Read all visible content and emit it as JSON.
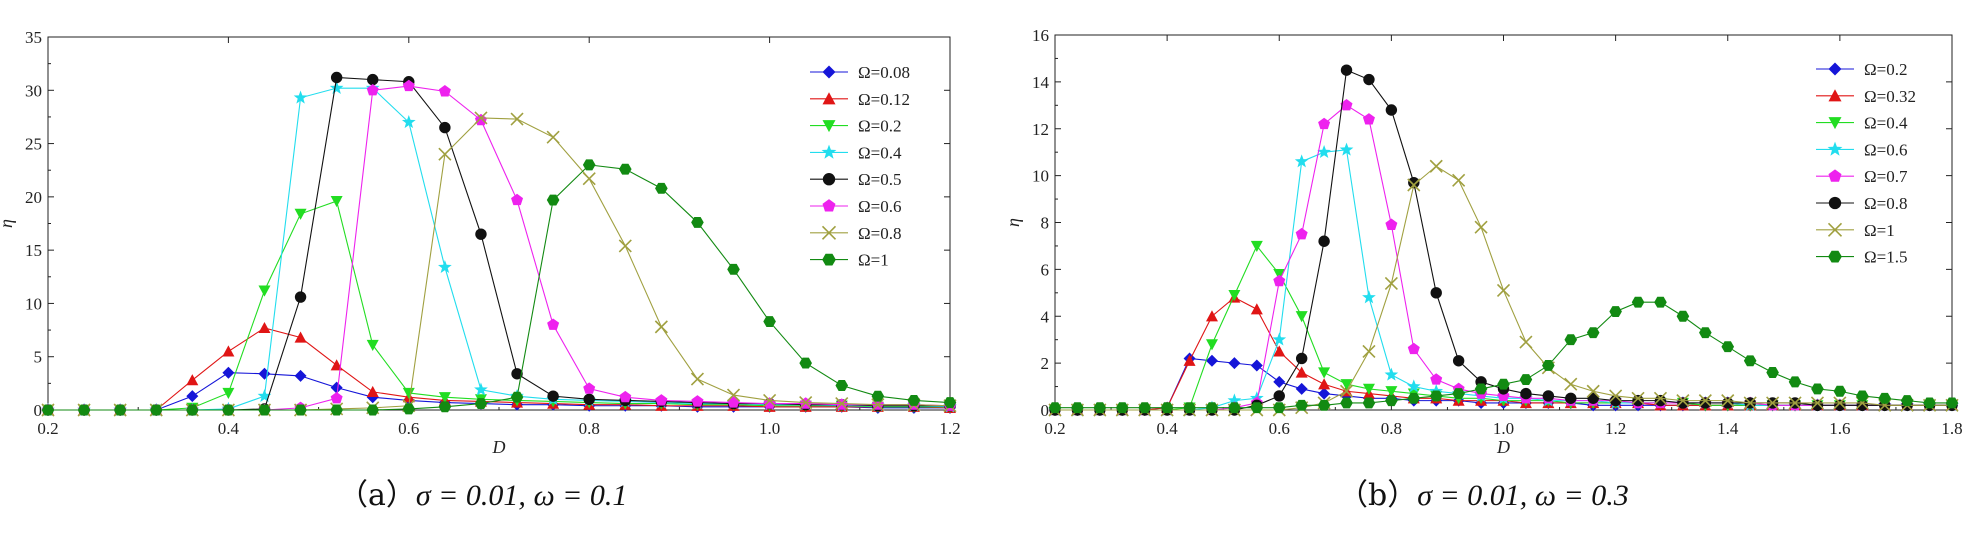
{
  "chart_data": [
    {
      "type": "line",
      "xlabel": "D",
      "ylabel": "η",
      "xlim": [
        0.2,
        1.2
      ],
      "ylim": [
        0,
        35
      ],
      "xticks": [
        0.2,
        0.4,
        0.6,
        0.8,
        1.0,
        1.2
      ],
      "xtick_labels": [
        "0.2",
        "0.4",
        "0.6",
        "0.8",
        "1.0",
        "1.2"
      ],
      "yticks": [
        0,
        5,
        10,
        15,
        20,
        25,
        30,
        35
      ],
      "ytick_labels": [
        "0",
        "5",
        "10",
        "15",
        "20",
        "25",
        "30",
        "35"
      ],
      "grid": false,
      "legend_position": "top-right",
      "x": [
        0.2,
        0.24,
        0.28,
        0.32,
        0.36,
        0.4,
        0.44,
        0.48,
        0.52,
        0.56,
        0.6,
        0.64,
        0.68,
        0.72,
        0.76,
        0.8,
        0.84,
        0.88,
        0.92,
        0.96,
        1.0,
        1.04,
        1.08,
        1.12,
        1.16,
        1.2
      ],
      "series": [
        {
          "name": "Ω=0.08",
          "color": "#1515d8",
          "marker": "diamond",
          "values": [
            0,
            0,
            0,
            0,
            1.3,
            3.5,
            3.4,
            3.2,
            2.1,
            1.2,
            0.9,
            0.7,
            0.6,
            0.5,
            0.5,
            0.4,
            0.4,
            0.4,
            0.3,
            0.3,
            0.3,
            0.3,
            0.3,
            0.2,
            0.2,
            0.2
          ]
        },
        {
          "name": "Ω=0.12",
          "color": "#e01515",
          "marker": "triangle-up",
          "values": [
            0,
            0,
            0,
            0,
            2.8,
            5.5,
            7.7,
            6.8,
            4.2,
            1.7,
            1.2,
            0.9,
            0.8,
            0.7,
            0.6,
            0.5,
            0.5,
            0.4,
            0.4,
            0.4,
            0.3,
            0.3,
            0.3,
            0.3,
            0.3,
            0.2
          ]
        },
        {
          "name": "Ω=0.2",
          "color": "#22dd22",
          "marker": "triangle-down",
          "values": [
            0,
            0,
            0,
            0,
            0.2,
            1.6,
            11.2,
            18.4,
            19.6,
            6.1,
            1.6,
            1.2,
            1.0,
            0.9,
            0.8,
            0.7,
            0.6,
            0.6,
            0.5,
            0.5,
            0.4,
            0.4,
            0.4,
            0.3,
            0.3,
            0.3
          ]
        },
        {
          "name": "Ω=0.4",
          "color": "#22ddee",
          "marker": "star",
          "values": [
            0,
            0,
            0,
            0,
            0,
            0.1,
            1.3,
            29.3,
            30.2,
            30.2,
            27.0,
            13.4,
            1.9,
            1.3,
            1.0,
            0.9,
            0.8,
            0.7,
            0.6,
            0.6,
            0.5,
            0.5,
            0.4,
            0.4,
            0.4,
            0.3
          ]
        },
        {
          "name": "Ω=0.5",
          "color": "#111111",
          "marker": "circle",
          "values": [
            0,
            0,
            0,
            0,
            0,
            0,
            0.1,
            10.6,
            31.2,
            31.0,
            30.8,
            26.5,
            16.5,
            3.4,
            1.3,
            1.0,
            0.9,
            0.8,
            0.7,
            0.6,
            0.6,
            0.5,
            0.5,
            0.4,
            0.4,
            0.4
          ]
        },
        {
          "name": "Ω=0.6",
          "color": "#ee22ee",
          "marker": "pentagon",
          "values": [
            0,
            0,
            0,
            0,
            0,
            0,
            0,
            0.2,
            1.1,
            30.0,
            30.4,
            29.9,
            27.2,
            19.7,
            8.0,
            2.0,
            1.2,
            0.9,
            0.8,
            0.7,
            0.6,
            0.6,
            0.5,
            0.5,
            0.5,
            0.4
          ]
        },
        {
          "name": "Ω=0.8",
          "color": "#a0a040",
          "marker": "x",
          "values": [
            0,
            0,
            0,
            0,
            0,
            0,
            0,
            0,
            0.1,
            0.2,
            0.4,
            24.0,
            27.4,
            27.3,
            25.6,
            21.7,
            15.4,
            7.8,
            2.9,
            1.4,
            0.9,
            0.7,
            0.6,
            0.5,
            0.5,
            0.4
          ]
        },
        {
          "name": "Ω=1",
          "color": "#128a12",
          "marker": "hexagon",
          "values": [
            0,
            0,
            0,
            0,
            0,
            0,
            0,
            0,
            0,
            0,
            0.1,
            0.3,
            0.6,
            1.2,
            19.7,
            23.0,
            22.6,
            20.8,
            17.6,
            13.2,
            8.3,
            4.4,
            2.3,
            1.3,
            0.9,
            0.7
          ]
        }
      ]
    },
    {
      "type": "line",
      "xlabel": "D",
      "ylabel": "η",
      "xlim": [
        0.2,
        1.8
      ],
      "ylim": [
        0,
        16
      ],
      "xticks": [
        0.2,
        0.4,
        0.6,
        0.8,
        1.0,
        1.2,
        1.4,
        1.6,
        1.8
      ],
      "xtick_labels": [
        "0.2",
        "0.4",
        "0.6",
        "0.8",
        "1.0",
        "1.2",
        "1.4",
        "1.6",
        "1.8"
      ],
      "yticks": [
        0,
        2,
        4,
        6,
        8,
        10,
        12,
        14,
        16
      ],
      "ytick_labels": [
        "0",
        "2",
        "4",
        "6",
        "8",
        "10",
        "12",
        "14",
        "16"
      ],
      "grid": false,
      "legend_position": "top-right",
      "x": [
        0.2,
        0.24,
        0.28,
        0.32,
        0.36,
        0.4,
        0.44,
        0.48,
        0.52,
        0.56,
        0.6,
        0.64,
        0.68,
        0.72,
        0.76,
        0.8,
        0.84,
        0.88,
        0.92,
        0.96,
        1.0,
        1.04,
        1.08,
        1.12,
        1.16,
        1.2,
        1.24,
        1.28,
        1.32,
        1.36,
        1.4,
        1.44,
        1.48,
        1.52,
        1.56,
        1.6,
        1.64,
        1.68,
        1.72,
        1.76,
        1.8
      ],
      "series": [
        {
          "name": "Ω=0.2",
          "color": "#1515d8",
          "marker": "diamond",
          "values": [
            0,
            0,
            0,
            0,
            0,
            0.1,
            2.2,
            2.1,
            2.0,
            1.9,
            1.2,
            0.9,
            0.7,
            0.6,
            0.5,
            0.5,
            0.4,
            0.4,
            0.4,
            0.3,
            0.3,
            0.3,
            0.3,
            0.3,
            0.2,
            0.2,
            0.2,
            0.2,
            0.2,
            0.2,
            0.2,
            0.2,
            0.2,
            0.2,
            0.2,
            0.2,
            0.2,
            0.2,
            0.2,
            0.2,
            0.2
          ]
        },
        {
          "name": "Ω=0.32",
          "color": "#e01515",
          "marker": "triangle-up",
          "values": [
            0,
            0,
            0,
            0,
            0,
            0.1,
            2.1,
            4.0,
            4.8,
            4.3,
            2.5,
            1.6,
            1.1,
            0.8,
            0.7,
            0.6,
            0.5,
            0.5,
            0.4,
            0.4,
            0.4,
            0.3,
            0.3,
            0.3,
            0.3,
            0.3,
            0.3,
            0.2,
            0.2,
            0.2,
            0.2,
            0.2,
            0.2,
            0.2,
            0.2,
            0.2,
            0.2,
            0.2,
            0.2,
            0.2,
            0.2
          ]
        },
        {
          "name": "Ω=0.4",
          "color": "#22dd22",
          "marker": "triangle-down",
          "values": [
            0,
            0,
            0,
            0,
            0,
            0,
            0.1,
            2.8,
            4.9,
            7.0,
            5.8,
            4.0,
            1.6,
            1.1,
            0.9,
            0.8,
            0.7,
            0.6,
            0.5,
            0.5,
            0.4,
            0.4,
            0.4,
            0.3,
            0.3,
            0.3,
            0.3,
            0.3,
            0.3,
            0.2,
            0.2,
            0.2,
            0.2,
            0.2,
            0.2,
            0.2,
            0.2,
            0.2,
            0.2,
            0.2,
            0.2
          ]
        },
        {
          "name": "Ω=0.6",
          "color": "#22ddee",
          "marker": "star",
          "values": [
            0,
            0,
            0,
            0,
            0,
            0,
            0,
            0.1,
            0.4,
            0.5,
            3.0,
            10.6,
            11.0,
            11.1,
            4.8,
            1.5,
            1.0,
            0.8,
            0.7,
            0.6,
            0.5,
            0.5,
            0.4,
            0.4,
            0.4,
            0.3,
            0.3,
            0.3,
            0.3,
            0.3,
            0.3,
            0.2,
            0.2,
            0.2,
            0.2,
            0.2,
            0.2,
            0.2,
            0.2,
            0.2,
            0.2
          ]
        },
        {
          "name": "Ω=0.7",
          "color": "#ee22ee",
          "marker": "pentagon",
          "values": [
            0,
            0,
            0,
            0,
            0,
            0,
            0,
            0,
            0.1,
            0.3,
            5.5,
            7.5,
            12.2,
            13.0,
            12.4,
            7.9,
            2.6,
            1.3,
            0.9,
            0.7,
            0.6,
            0.5,
            0.5,
            0.4,
            0.4,
            0.4,
            0.3,
            0.3,
            0.3,
            0.3,
            0.3,
            0.3,
            0.2,
            0.2,
            0.2,
            0.2,
            0.2,
            0.2,
            0.2,
            0.2,
            0.2
          ]
        },
        {
          "name": "Ω=0.8",
          "color": "#111111",
          "marker": "circle",
          "values": [
            0,
            0,
            0,
            0,
            0,
            0,
            0,
            0,
            0,
            0.2,
            0.6,
            2.2,
            7.2,
            14.5,
            14.1,
            12.8,
            9.7,
            5.0,
            2.1,
            1.2,
            0.9,
            0.7,
            0.6,
            0.5,
            0.5,
            0.4,
            0.4,
            0.4,
            0.3,
            0.3,
            0.3,
            0.3,
            0.3,
            0.3,
            0.2,
            0.2,
            0.2,
            0.2,
            0.2,
            0.2,
            0.2
          ]
        },
        {
          "name": "Ω=1",
          "color": "#a0a040",
          "marker": "x",
          "values": [
            0,
            0,
            0,
            0,
            0,
            0,
            0,
            0,
            0,
            0,
            0,
            0.1,
            0.3,
            0.8,
            2.5,
            5.4,
            9.6,
            10.4,
            9.8,
            7.8,
            5.1,
            2.9,
            1.8,
            1.1,
            0.8,
            0.6,
            0.5,
            0.5,
            0.4,
            0.4,
            0.4,
            0.3,
            0.3,
            0.3,
            0.3,
            0.3,
            0.3,
            0.2,
            0.2,
            0.2,
            0.2
          ]
        },
        {
          "name": "Ω=1.5",
          "color": "#128a12",
          "marker": "hexagon",
          "values": [
            0.1,
            0.1,
            0.1,
            0.1,
            0.1,
            0.1,
            0.1,
            0.1,
            0.1,
            0.1,
            0.1,
            0.2,
            0.2,
            0.3,
            0.3,
            0.4,
            0.5,
            0.6,
            0.7,
            0.9,
            1.1,
            1.3,
            1.9,
            3.0,
            3.3,
            4.2,
            4.6,
            4.6,
            4.0,
            3.3,
            2.7,
            2.1,
            1.6,
            1.2,
            0.9,
            0.8,
            0.6,
            0.5,
            0.4,
            0.3,
            0.3
          ]
        }
      ]
    }
  ],
  "captions": [
    {
      "paren": "（a）",
      "sigma_expr": "σ = 0.01,",
      "omega_expr": "ω = 0.1"
    },
    {
      "paren": "（b）",
      "sigma_expr": "σ = 0.01,",
      "omega_expr": "ω = 0.3"
    }
  ]
}
